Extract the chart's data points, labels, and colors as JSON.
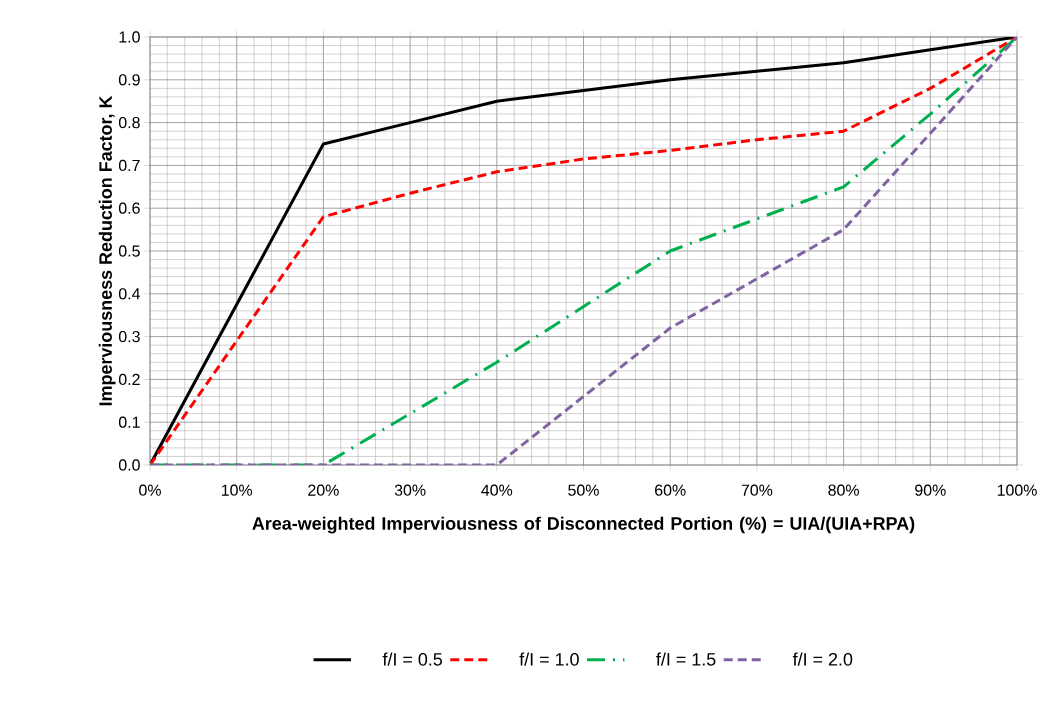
{
  "chart_data": {
    "type": "line",
    "xlabel": "Area-weighted Imperviousness of Disconnected Portion (%) = UIA/(UIA+RPA)",
    "ylabel": "Imperviousness Reduction Factor, K",
    "xlim": [
      0,
      100
    ],
    "ylim": [
      0,
      1.0
    ],
    "xticks": [
      {
        "value": 0,
        "label": "0%"
      },
      {
        "value": 10,
        "label": "10%"
      },
      {
        "value": 20,
        "label": "20%"
      },
      {
        "value": 30,
        "label": "30%"
      },
      {
        "value": 40,
        "label": "40%"
      },
      {
        "value": 50,
        "label": "50%"
      },
      {
        "value": 60,
        "label": "60%"
      },
      {
        "value": 70,
        "label": "70%"
      },
      {
        "value": 80,
        "label": "80%"
      },
      {
        "value": 90,
        "label": "90%"
      },
      {
        "value": 100,
        "label": "100%"
      }
    ],
    "yticks": [
      {
        "value": 0,
        "label": "0.0"
      },
      {
        "value": 0.1,
        "label": "0.1"
      },
      {
        "value": 0.2,
        "label": "0.2"
      },
      {
        "value": 0.3,
        "label": "0.3"
      },
      {
        "value": 0.4,
        "label": "0.4"
      },
      {
        "value": 0.5,
        "label": "0.5"
      },
      {
        "value": 0.6,
        "label": "0.6"
      },
      {
        "value": 0.7,
        "label": "0.7"
      },
      {
        "value": 0.8,
        "label": "0.8"
      },
      {
        "value": 0.9,
        "label": "0.9"
      },
      {
        "value": 1.0,
        "label": "1.0"
      }
    ],
    "grid": true,
    "legend": "bottom",
    "series": [
      {
        "name": "f/I = 0.5",
        "color": "#000000",
        "line_style": "solid",
        "x": [
          0,
          20,
          30,
          40,
          50,
          60,
          70,
          80,
          90,
          100
        ],
        "values": [
          0,
          0.75,
          0.8,
          0.85,
          0.875,
          0.9,
          0.92,
          0.94,
          0.97,
          1.0
        ]
      },
      {
        "name": "f/I = 1.0",
        "color": "#ff0000",
        "line_style": "dashed",
        "x": [
          0,
          20,
          30,
          40,
          50,
          60,
          70,
          80,
          90,
          100
        ],
        "values": [
          0,
          0.58,
          0.635,
          0.685,
          0.715,
          0.735,
          0.76,
          0.78,
          0.88,
          1.0
        ]
      },
      {
        "name": "f/I = 1.5",
        "color": "#00b050",
        "line_style": "dashdot",
        "x": [
          0,
          20,
          40,
          60,
          80,
          90,
          100
        ],
        "values": [
          0,
          0,
          0.24,
          0.5,
          0.65,
          0.82,
          1.0
        ]
      },
      {
        "name": "f/I = 2.0",
        "color": "#8064a2",
        "line_style": "dashed",
        "x": [
          0,
          40,
          60,
          80,
          90,
          100
        ],
        "values": [
          0,
          0,
          0.32,
          0.55,
          0.775,
          1.0
        ]
      }
    ]
  }
}
